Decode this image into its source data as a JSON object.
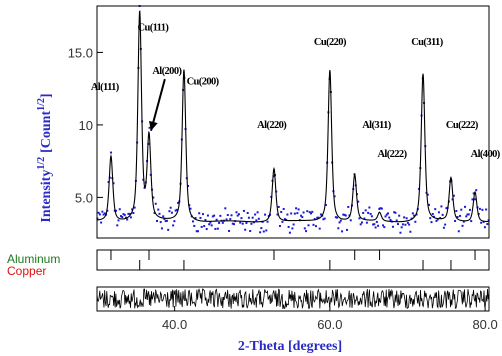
{
  "chart_data": {
    "type": "line",
    "xlabel": "2-Theta [degrees]",
    "ylabel_main": "Intensity",
    "ylabel_exp": "1/2",
    "ylabel_unit": "[Count",
    "ylabel_unit_exp": "1/2",
    "ylabel_unit_close": "]",
    "xlim": [
      30,
      80.5
    ],
    "ylim": [
      2.2,
      18.2
    ],
    "x_ticks": [
      40,
      60,
      80
    ],
    "x_tick_labels": [
      "40.0",
      "60.0",
      "80.0"
    ],
    "y_ticks": [
      5,
      10,
      15
    ],
    "y_tick_labels": [
      "5.0",
      "10",
      "15.0"
    ],
    "baseline": 3.3,
    "peaks": [
      {
        "label": "Al(111)",
        "x": 31.8,
        "height": 7.8,
        "label_pos": [
          31.0,
          12.4
        ]
      },
      {
        "label": "Cu(111)",
        "x": 35.5,
        "height": 17.7,
        "label_pos": [
          37.2,
          16.5
        ]
      },
      {
        "label": "Al(200)",
        "x": 36.7,
        "height": 9.0,
        "label_pos": [
          39.0,
          13.5
        ]
      },
      {
        "label": "Cu(200)",
        "x": 41.2,
        "height": 13.8,
        "label_pos": [
          43.6,
          12.8
        ]
      },
      {
        "label": "Al(220)",
        "x": 52.8,
        "height": 7.0,
        "label_pos": [
          52.5,
          9.8
        ]
      },
      {
        "label": "Cu(220)",
        "x": 60.0,
        "height": 13.8,
        "label_pos": [
          60.0,
          15.5
        ]
      },
      {
        "label": "Al(311)",
        "x": 63.2,
        "height": 6.5,
        "label_pos": [
          66.0,
          9.8
        ]
      },
      {
        "label": "Al(222)",
        "x": 66.4,
        "height": 3.9,
        "label_pos": [
          68.0,
          7.8
        ]
      },
      {
        "label": "Cu(311)",
        "x": 72.0,
        "height": 13.5,
        "label_pos": [
          72.5,
          15.5
        ]
      },
      {
        "label": "Cu(222)",
        "x": 75.6,
        "height": 6.3,
        "label_pos": [
          77.0,
          9.8
        ]
      },
      {
        "label": "Al(400)",
        "x": 78.7,
        "height": 5.4,
        "label_pos": [
          80.0,
          7.8
        ]
      }
    ],
    "phases": [
      {
        "name": "Aluminum",
        "color": "#1a7a1a",
        "positions": [
          31.8,
          36.7,
          52.8,
          63.2,
          66.4,
          78.7
        ]
      },
      {
        "name": "Copper",
        "color": "#dd1111",
        "positions": [
          35.5,
          41.2,
          60.0,
          72.0,
          75.6
        ]
      }
    ],
    "colors": {
      "observed_points": "#1a1ad6",
      "calculated_line": "#000000",
      "axis_text": "#2a2ac8",
      "frame": "#000000"
    },
    "series": [
      {
        "type": "scatter"
      },
      {
        "type": "line"
      }
    ],
    "panels": [
      "pattern",
      "reflection-markers",
      "difference"
    ],
    "grid": false
  }
}
